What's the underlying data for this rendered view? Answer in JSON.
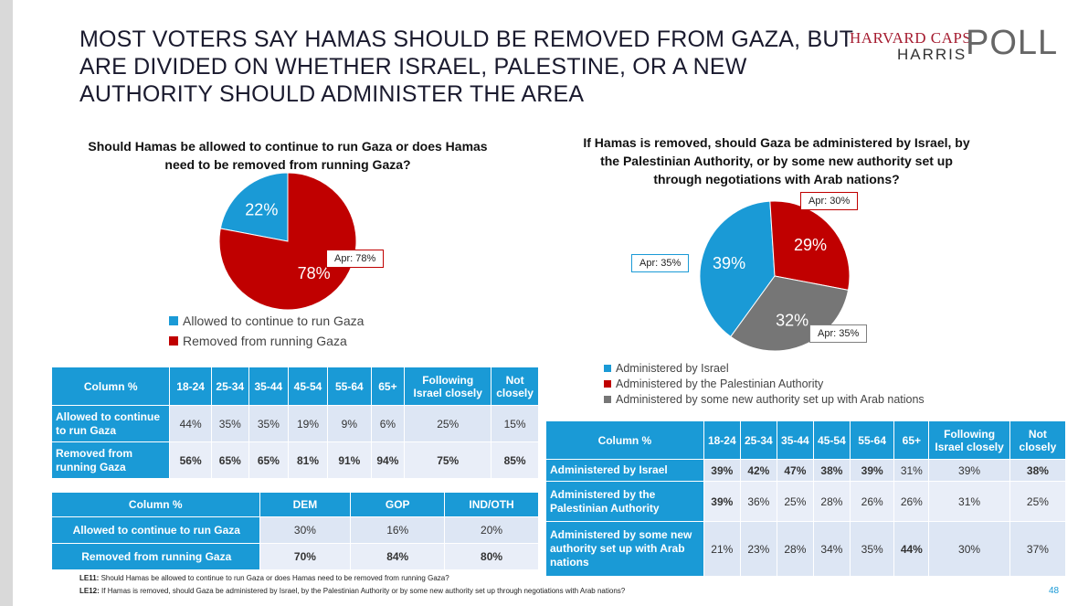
{
  "title_lines": [
    "MOST VOTERS SAY HAMAS SHOULD BE REMOVED FROM GAZA, BUT",
    "ARE DIVIDED ON WHETHER ISRAEL, PALESTINE, OR A NEW",
    "AUTHORITY SHOULD ADMINISTER THE AREA"
  ],
  "logo": {
    "line1": "HARVARD CAPS",
    "line2": "HARRIS",
    "line3": "POLL"
  },
  "colors": {
    "blue": "#1a9ad6",
    "red": "#c00000",
    "grey": "#767676",
    "table_header": "#1a9ad6",
    "table_cell": "#dde6f4"
  },
  "chart_data": [
    {
      "type": "pie",
      "title": "Should Hamas be allowed to continue to run Gaza or does Hamas need to be removed from running Gaza?",
      "categories": [
        "Allowed to continue to run Gaza",
        "Removed from running Gaza"
      ],
      "values": [
        22,
        78
      ],
      "labels": [
        "22%",
        "78%"
      ],
      "colors": [
        "#1a9ad6",
        "#c00000"
      ],
      "callouts": [
        "Apr: 78%"
      ],
      "legend": "bottom"
    },
    {
      "type": "pie",
      "title": "If Hamas is removed, should Gaza be administered by Israel, by the Palestinian Authority, or by some new authority set up through negotiations with Arab nations?",
      "categories": [
        "Administered by Israel",
        "Administered by the Palestinian Authority",
        "Administered by some new authority set up with Arab nations"
      ],
      "values": [
        39,
        29,
        32
      ],
      "labels": [
        "39%",
        "29%",
        "32%"
      ],
      "colors": [
        "#1a9ad6",
        "#c00000",
        "#767676"
      ],
      "callouts": [
        "Apr: 35%",
        "Apr: 30%",
        "Apr: 35%"
      ],
      "legend": "bottom"
    }
  ],
  "table1": {
    "headers": [
      "Column %",
      "18-24",
      "25-34",
      "35-44",
      "45-54",
      "55-64",
      "65+",
      "Following Israel closely",
      "Not closely"
    ],
    "rows": [
      {
        "label": "Allowed to continue to run Gaza",
        "values": [
          "44%",
          "35%",
          "35%",
          "19%",
          "9%",
          "6%",
          "25%",
          "15%"
        ]
      },
      {
        "label": "Removed from running Gaza",
        "values": [
          "56%",
          "65%",
          "65%",
          "81%",
          "91%",
          "94%",
          "75%",
          "85%"
        ]
      }
    ]
  },
  "table2": {
    "headers": [
      "Column %",
      "DEM",
      "GOP",
      "IND/OTH"
    ],
    "rows": [
      {
        "label": "Allowed to continue to run Gaza",
        "values": [
          "30%",
          "16%",
          "20%"
        ]
      },
      {
        "label": "Removed from running Gaza",
        "values": [
          "70%",
          "84%",
          "80%"
        ]
      }
    ]
  },
  "table3": {
    "headers": [
      "Column %",
      "18-24",
      "25-34",
      "35-44",
      "45-54",
      "55-64",
      "65+",
      "Following Israel closely",
      "Not closely"
    ],
    "rows": [
      {
        "label": "Administered by Israel",
        "values": [
          "39%",
          "42%",
          "47%",
          "38%",
          "39%",
          "31%",
          "39%",
          "38%"
        ]
      },
      {
        "label": "Administered by the Palestinian Authority",
        "values": [
          "39%",
          "36%",
          "25%",
          "28%",
          "26%",
          "26%",
          "31%",
          "25%"
        ]
      },
      {
        "label": "Administered by some new authority set up with Arab nations",
        "values": [
          "21%",
          "23%",
          "28%",
          "34%",
          "35%",
          "44%",
          "30%",
          "37%"
        ]
      }
    ]
  },
  "footnotes": [
    {
      "code": "LE11:",
      "text": " Should Hamas be allowed to continue to run Gaza or does Hamas need to be removed from running Gaza?"
    },
    {
      "code": "LE12:",
      "text": " If Hamas is removed, should Gaza be administered by Israel, by the Palestinian Authority or by some new authority set up through negotiations with Arab nations?"
    }
  ],
  "page_number": "48"
}
